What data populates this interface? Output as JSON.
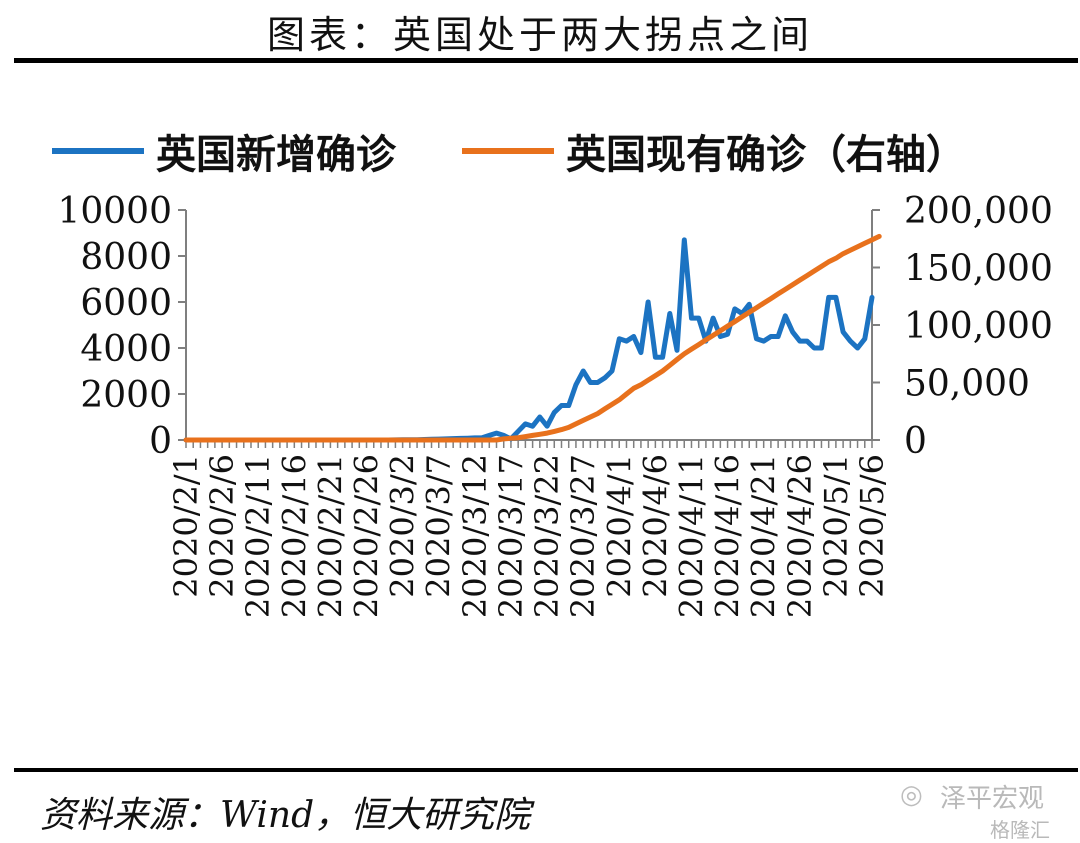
{
  "page": {
    "title": "图表：英国处于两大拐点之间",
    "source": "资料来源：Wind，恒大研究院",
    "watermark": "泽平宏观",
    "watermark2": "格隆汇"
  },
  "colors": {
    "blue": "#1C73C2",
    "orange": "#E8711C",
    "axis": "#7f7f7f"
  },
  "chart_data": {
    "type": "line",
    "legend": [
      "英国新增确诊",
      "英国现有确诊（右轴）"
    ],
    "ylim_left": [
      0,
      10000
    ],
    "ylim_right": [
      0,
      200000
    ],
    "yticks_left": [
      "0",
      "2000",
      "4000",
      "6000",
      "8000",
      "10000"
    ],
    "yticks_right": [
      "0",
      "50,000",
      "100,000",
      "150,000",
      "200,000"
    ],
    "xticks": [
      "2020/2/1",
      "2020/2/6",
      "2020/2/11",
      "2020/2/16",
      "2020/2/21",
      "2020/2/26",
      "2020/3/2",
      "2020/3/7",
      "2020/3/12",
      "2020/3/17",
      "2020/3/22",
      "2020/3/27",
      "2020/4/1",
      "2020/4/6",
      "2020/4/11",
      "2020/4/16",
      "2020/4/21",
      "2020/4/26",
      "2020/5/1",
      "2020/5/6"
    ],
    "start_date": "2020/2/1",
    "series": [
      {
        "name": "英国新增确诊",
        "axis": "left",
        "values": [
          0,
          0,
          0,
          0,
          0,
          0,
          0,
          0,
          0,
          0,
          0,
          0,
          0,
          0,
          0,
          0,
          0,
          0,
          0,
          0,
          0,
          0,
          0,
          0,
          0,
          0,
          0,
          0,
          0,
          4,
          8,
          12,
          15,
          20,
          30,
          40,
          50,
          60,
          70,
          80,
          90,
          100,
          200,
          300,
          200,
          50,
          380,
          700,
          600,
          1000,
          600,
          1200,
          1500,
          1500,
          2400,
          3000,
          2500,
          2500,
          2700,
          3000,
          4400,
          4300,
          4500,
          3800,
          6000,
          3600,
          3600,
          5500,
          3900,
          8700,
          5300,
          5300,
          4300,
          5300,
          4500,
          4600,
          5700,
          5500,
          5900,
          4400,
          4300,
          4500,
          4500,
          5400,
          4700,
          4300,
          4300,
          4000,
          4000,
          6200,
          6200,
          4700,
          4300,
          4000,
          4400,
          6200
        ]
      },
      {
        "name": "英国现有确诊（右轴）",
        "axis": "right",
        "values": [
          0,
          0,
          0,
          0,
          0,
          0,
          0,
          0,
          0,
          0,
          0,
          0,
          0,
          0,
          0,
          0,
          0,
          0,
          0,
          0,
          0,
          0,
          0,
          0,
          0,
          0,
          0,
          0,
          0,
          0,
          0,
          0,
          0,
          0,
          0,
          0,
          0,
          0,
          0,
          0,
          0,
          0,
          0,
          0,
          1000,
          1500,
          2000,
          3000,
          4000,
          5000,
          6000,
          7500,
          9000,
          11000,
          14000,
          17000,
          20000,
          23000,
          27000,
          31000,
          35000,
          40000,
          45000,
          48000,
          52000,
          56000,
          60000,
          65000,
          70000,
          75000,
          79000,
          83000,
          87000,
          91000,
          95000,
          99000,
          103000,
          107000,
          111000,
          115000,
          119000,
          123000,
          127000,
          131000,
          135000,
          139000,
          143000,
          147000,
          151000,
          155000,
          158000,
          162000,
          165000,
          168000,
          171000,
          174000,
          177000
        ]
      }
    ]
  }
}
